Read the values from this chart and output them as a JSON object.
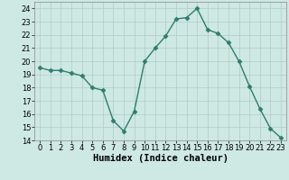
{
  "x": [
    0,
    1,
    2,
    3,
    4,
    5,
    6,
    7,
    8,
    9,
    10,
    11,
    12,
    13,
    14,
    15,
    16,
    17,
    18,
    19,
    20,
    21,
    22,
    23
  ],
  "y": [
    19.5,
    19.3,
    19.3,
    19.1,
    18.9,
    18.0,
    17.8,
    15.5,
    14.7,
    16.2,
    20.0,
    21.0,
    21.9,
    23.2,
    23.3,
    24.0,
    22.4,
    22.1,
    21.4,
    20.0,
    18.1,
    16.4,
    14.9,
    14.2
  ],
  "line_color": "#2e7d6e",
  "marker": "D",
  "marker_size": 2.5,
  "bg_color": "#cee8e4",
  "grid_color": "#b0ccc8",
  "xlabel": "Humidex (Indice chaleur)",
  "xlim": [
    -0.5,
    23.5
  ],
  "ylim": [
    14,
    24.5
  ],
  "yticks": [
    14,
    15,
    16,
    17,
    18,
    19,
    20,
    21,
    22,
    23,
    24
  ],
  "xticks": [
    0,
    1,
    2,
    3,
    4,
    5,
    6,
    7,
    8,
    9,
    10,
    11,
    12,
    13,
    14,
    15,
    16,
    17,
    18,
    19,
    20,
    21,
    22,
    23
  ],
  "tick_fontsize": 6,
  "xlabel_fontsize": 7.5
}
